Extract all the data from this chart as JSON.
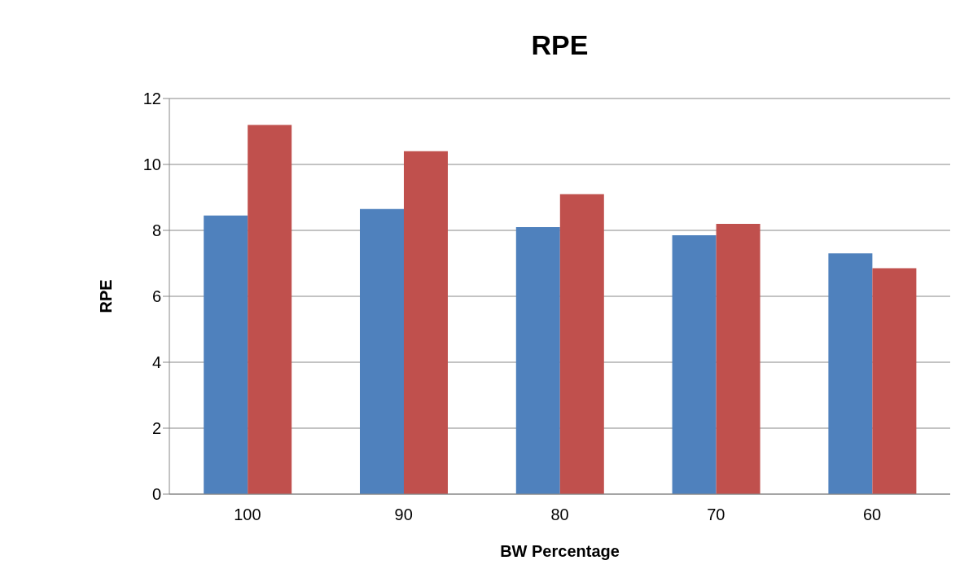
{
  "chart_data": {
    "type": "bar",
    "title": "RPE",
    "xlabel": "BW Percentage",
    "ylabel": "RPE",
    "categories": [
      "100",
      "90",
      "80",
      "70",
      "60"
    ],
    "series": [
      {
        "color": "#4f81bd",
        "values": [
          8.45,
          8.65,
          8.1,
          7.85,
          7.3
        ]
      },
      {
        "color": "#c0504d",
        "values": [
          11.2,
          10.4,
          9.1,
          8.2,
          6.85
        ]
      }
    ],
    "ylim": [
      0,
      12
    ],
    "yticks": [
      0,
      2,
      4,
      6,
      8,
      10,
      12
    ],
    "grid": "y",
    "legend": false
  }
}
